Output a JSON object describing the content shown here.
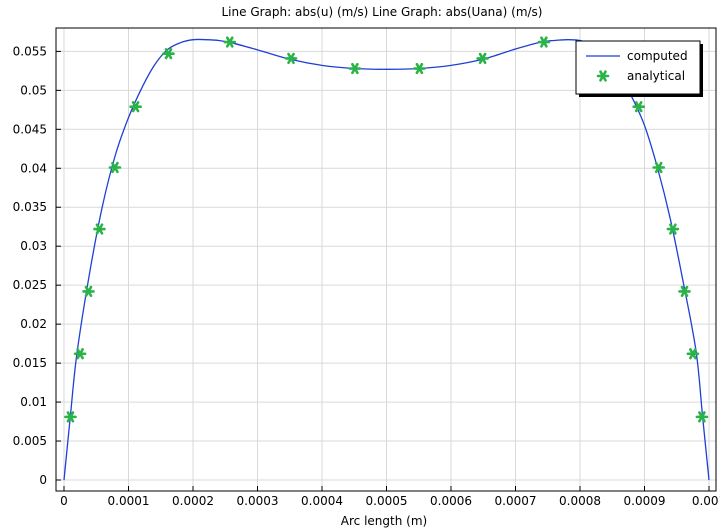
{
  "chart_data": {
    "type": "line",
    "title": "Line Graph: abs(u) (m/s)  Line Graph: abs(Uana) (m/s)",
    "xlabel": "Arc length (m)",
    "ylabel": "",
    "xlim": [
      0,
      0.001
    ],
    "ylim": [
      0,
      0.058
    ],
    "grid": true,
    "legend_position": "top-right",
    "x_ticks": [
      "0",
      "0.0001",
      "0.0002",
      "0.0003",
      "0.0004",
      "0.0005",
      "0.0006",
      "0.0007",
      "0.0008",
      "0.0009",
      "0.001"
    ],
    "y_ticks": [
      "0",
      "0.005",
      "0.01",
      "0.015",
      "0.02",
      "0.025",
      "0.03",
      "0.035",
      "0.04",
      "0.045",
      "0.05",
      "0.055"
    ],
    "series": [
      {
        "name": "computed",
        "style": "line",
        "color": "#1f3fd6",
        "x": [
          0,
          1e-05,
          2e-05,
          4e-05,
          6e-05,
          8e-05,
          0.0001,
          0.00012,
          0.00014,
          0.00016,
          0.00018,
          0.0002,
          0.00022,
          0.00024,
          0.00026,
          0.0003,
          0.00035,
          0.0004,
          0.00045,
          0.0005,
          0.00055,
          0.0006,
          0.00065,
          0.0007,
          0.00074,
          0.00076,
          0.00078,
          0.0008,
          0.00082,
          0.00084,
          0.00086,
          0.00088,
          0.0009,
          0.00092,
          0.00094,
          0.00096,
          0.00098,
          0.00099,
          0.001
        ],
        "y": [
          0,
          0.0083,
          0.0162,
          0.0267,
          0.0353,
          0.0418,
          0.0465,
          0.0502,
          0.0532,
          0.0552,
          0.0561,
          0.0565,
          0.0565,
          0.0564,
          0.0561,
          0.0552,
          0.054,
          0.0532,
          0.0528,
          0.0527,
          0.0528,
          0.0532,
          0.054,
          0.0553,
          0.0562,
          0.0564,
          0.0565,
          0.0564,
          0.0558,
          0.0545,
          0.0522,
          0.0492,
          0.0455,
          0.0401,
          0.0335,
          0.0254,
          0.0165,
          0.0082,
          0
        ]
      },
      {
        "name": "analytical",
        "style": "markers",
        "color": "#2bb34a",
        "x": [
          1e-05,
          2.5e-05,
          3.8e-05,
          5.5e-05,
          7.9e-05,
          0.000111,
          0.000162,
          0.000257,
          0.000352,
          0.000451,
          0.000551,
          0.000649,
          0.000744,
          0.000891,
          0.000922,
          0.000944,
          0.000962,
          0.000975,
          0.000989
        ],
        "y": [
          0.0081,
          0.0162,
          0.0242,
          0.0322,
          0.0401,
          0.0479,
          0.0547,
          0.0562,
          0.0541,
          0.0528,
          0.0528,
          0.0541,
          0.0562,
          0.0479,
          0.0401,
          0.0322,
          0.0242,
          0.0162,
          0.0081
        ]
      }
    ]
  }
}
